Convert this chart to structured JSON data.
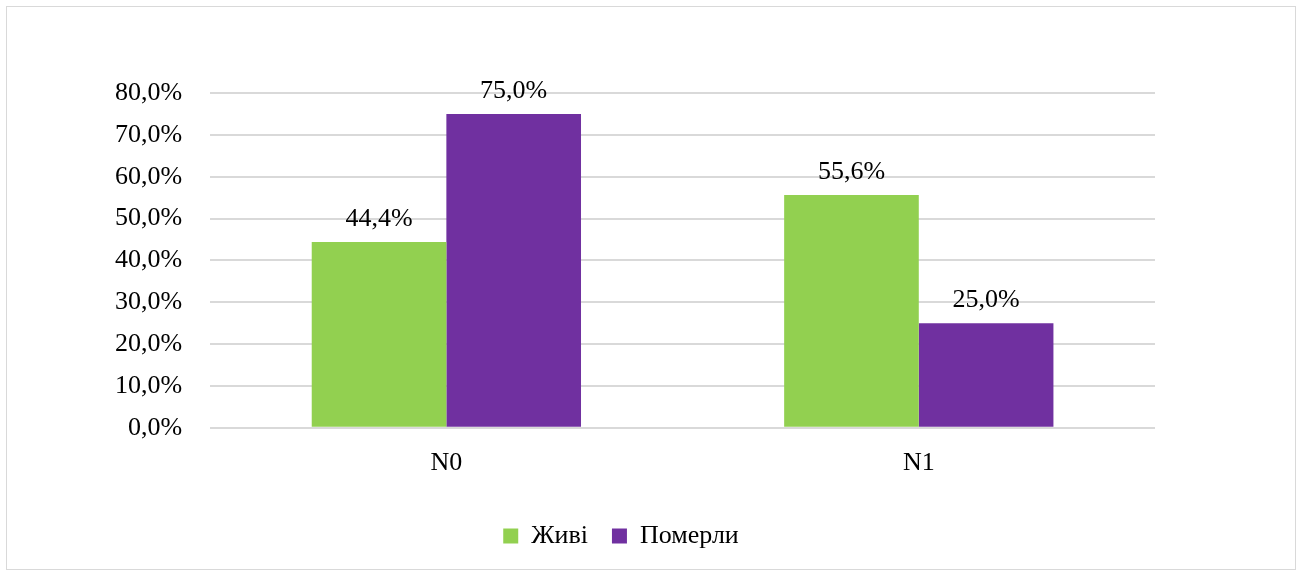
{
  "chart_data": {
    "type": "bar",
    "categories": [
      "N0",
      "N1"
    ],
    "series": [
      {
        "name": "Живі",
        "color": "#92d050",
        "values": [
          44.4,
          55.6
        ],
        "value_labels": [
          "44,4%",
          "55,6%"
        ]
      },
      {
        "name": "Померли",
        "color": "#7030a0",
        "values": [
          75.0,
          25.0
        ],
        "value_labels": [
          "75,0%",
          "25,0%"
        ]
      }
    ],
    "ylim": [
      0,
      80
    ],
    "yticks": [
      {
        "value": 0,
        "label": "0,0%"
      },
      {
        "value": 10,
        "label": "10,0%"
      },
      {
        "value": 20,
        "label": "20,0%"
      },
      {
        "value": 30,
        "label": "30,0%"
      },
      {
        "value": 40,
        "label": "40,0%"
      },
      {
        "value": 50,
        "label": "50,0%"
      },
      {
        "value": 60,
        "label": "60,0%"
      },
      {
        "value": 70,
        "label": "70,0%"
      },
      {
        "value": 80,
        "label": "80,0%"
      }
    ],
    "grid": "y",
    "legend": "bottom"
  }
}
